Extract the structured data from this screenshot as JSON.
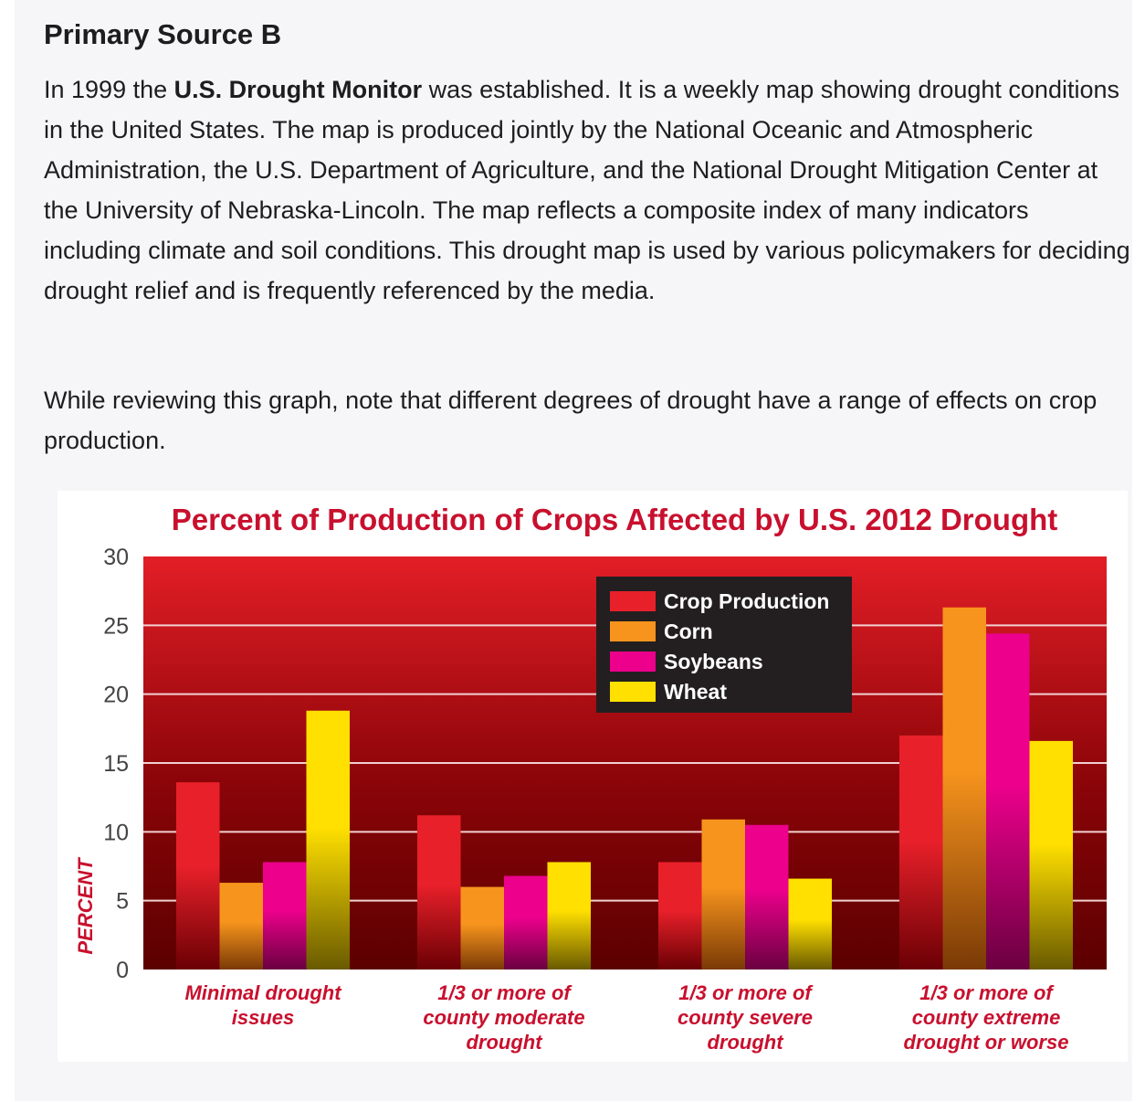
{
  "heading": "Primary Source B",
  "para1": {
    "pre": "In 1999 the ",
    "bold": "U.S. Drought Monitor",
    "post": " was established. It is a weekly map showing drought conditions in the United States. The map is produced jointly by the National Oceanic and Atmospheric Administration, the U.S. Department of Agriculture, and the National Drought Mitigation Center at the University of Nebraska-Lincoln. The map reflects a composite index of many indicators including climate and soil conditions. This drought map is used by various policymakers for deciding drought relief and is frequently referenced by the media."
  },
  "para2": "While reviewing this graph, note that different degrees of drought have a range of effects on crop production.",
  "chart_data": {
    "type": "bar",
    "title": "Percent of Production of Crops Affected by U.S. 2012 Drought",
    "ylabel": "PERCENT",
    "xlabel": "",
    "ylim": [
      0,
      30
    ],
    "yticks": [
      0,
      5,
      10,
      15,
      20,
      25,
      30
    ],
    "grid": true,
    "legend_position": "top-center-right",
    "categories": [
      [
        "Minimal drought",
        "issues"
      ],
      [
        "1/3 or more of",
        "county moderate",
        "drought"
      ],
      [
        "1/3 or more of",
        "county severe",
        "drought"
      ],
      [
        "1/3 or more of",
        "county extreme",
        "drought or worse"
      ]
    ],
    "series": [
      {
        "name": "Crop Production",
        "color": "#e8202a",
        "values": [
          13.6,
          11.2,
          7.8,
          17.0
        ]
      },
      {
        "name": "Corn",
        "color": "#f7941d",
        "values": [
          6.3,
          6.0,
          10.9,
          26.3
        ]
      },
      {
        "name": "Soybeans",
        "color": "#ec008c",
        "values": [
          7.8,
          6.8,
          10.5,
          24.4
        ]
      },
      {
        "name": "Wheat",
        "color": "#ffe000",
        "values": [
          18.8,
          7.8,
          6.6,
          16.6
        ]
      }
    ],
    "colors": {
      "title": "#c8102e",
      "plot_top": "#e31e26",
      "plot_bottom": "#5c0000",
      "legend_bg": "#231f20"
    }
  }
}
